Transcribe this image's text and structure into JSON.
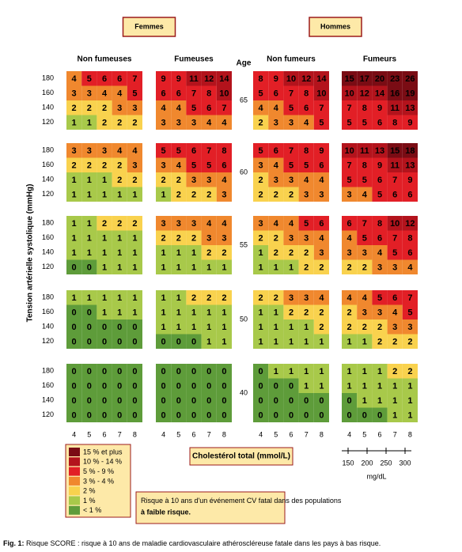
{
  "chart_data": {
    "type": "heatmap",
    "sexes": [
      {
        "label": "Femmes",
        "panels": [
          {
            "label": "Non fumeuses",
            "blocks": [
              [
                [
                  4,
                  5,
                  6,
                  6,
                  7
                ],
                [
                  3,
                  3,
                  4,
                  4,
                  5
                ],
                [
                  2,
                  2,
                  2,
                  3,
                  3
                ],
                [
                  1,
                  1,
                  2,
                  2,
                  2
                ]
              ],
              [
                [
                  3,
                  3,
                  3,
                  4,
                  4
                ],
                [
                  2,
                  2,
                  2,
                  2,
                  3
                ],
                [
                  1,
                  1,
                  1,
                  2,
                  2
                ],
                [
                  1,
                  1,
                  1,
                  1,
                  1
                ]
              ],
              [
                [
                  1,
                  1,
                  2,
                  2,
                  2
                ],
                [
                  1,
                  1,
                  1,
                  1,
                  1
                ],
                [
                  1,
                  1,
                  1,
                  1,
                  1
                ],
                [
                  0,
                  0,
                  1,
                  1,
                  1
                ]
              ],
              [
                [
                  1,
                  1,
                  1,
                  1,
                  1
                ],
                [
                  0,
                  0,
                  1,
                  1,
                  1
                ],
                [
                  0,
                  0,
                  0,
                  0,
                  0
                ],
                [
                  0,
                  0,
                  0,
                  0,
                  0
                ]
              ],
              [
                [
                  0,
                  0,
                  0,
                  0,
                  0
                ],
                [
                  0,
                  0,
                  0,
                  0,
                  0
                ],
                [
                  0,
                  0,
                  0,
                  0,
                  0
                ],
                [
                  0,
                  0,
                  0,
                  0,
                  0
                ]
              ]
            ]
          },
          {
            "label": "Fumeuses",
            "blocks": [
              [
                [
                  9,
                  9,
                  11,
                  12,
                  14
                ],
                [
                  6,
                  6,
                  7,
                  8,
                  10
                ],
                [
                  4,
                  4,
                  5,
                  6,
                  7
                ],
                [
                  3,
                  3,
                  3,
                  4,
                  4
                ]
              ],
              [
                [
                  5,
                  5,
                  6,
                  7,
                  8
                ],
                [
                  3,
                  4,
                  5,
                  5,
                  6
                ],
                [
                  2,
                  2,
                  3,
                  3,
                  4
                ],
                [
                  1,
                  2,
                  2,
                  2,
                  3
                ]
              ],
              [
                [
                  3,
                  3,
                  3,
                  4,
                  4
                ],
                [
                  2,
                  2,
                  2,
                  3,
                  3
                ],
                [
                  1,
                  1,
                  1,
                  2,
                  2
                ],
                [
                  1,
                  1,
                  1,
                  1,
                  1
                ]
              ],
              [
                [
                  1,
                  1,
                  2,
                  2,
                  2
                ],
                [
                  1,
                  1,
                  1,
                  1,
                  1
                ],
                [
                  1,
                  1,
                  1,
                  1,
                  1
                ],
                [
                  0,
                  0,
                  0,
                  1,
                  1
                ]
              ],
              [
                [
                  0,
                  0,
                  0,
                  0,
                  0
                ],
                [
                  0,
                  0,
                  0,
                  0,
                  0
                ],
                [
                  0,
                  0,
                  0,
                  0,
                  0
                ],
                [
                  0,
                  0,
                  0,
                  0,
                  0
                ]
              ]
            ]
          }
        ]
      },
      {
        "label": "Hommes",
        "panels": [
          {
            "label": "Non fumeurs",
            "blocks": [
              [
                [
                  8,
                  9,
                  10,
                  12,
                  14
                ],
                [
                  5,
                  6,
                  7,
                  8,
                  10
                ],
                [
                  4,
                  4,
                  5,
                  6,
                  7
                ],
                [
                  2,
                  3,
                  3,
                  4,
                  5
                ]
              ],
              [
                [
                  5,
                  6,
                  7,
                  8,
                  9
                ],
                [
                  3,
                  4,
                  5,
                  5,
                  6
                ],
                [
                  2,
                  3,
                  3,
                  4,
                  4
                ],
                [
                  2,
                  2,
                  2,
                  3,
                  3
                ]
              ],
              [
                [
                  3,
                  4,
                  4,
                  5,
                  6
                ],
                [
                  2,
                  2,
                  3,
                  3,
                  4
                ],
                [
                  1,
                  2,
                  2,
                  2,
                  3
                ],
                [
                  1,
                  1,
                  1,
                  2,
                  2
                ]
              ],
              [
                [
                  2,
                  2,
                  3,
                  3,
                  4
                ],
                [
                  1,
                  1,
                  2,
                  2,
                  2
                ],
                [
                  1,
                  1,
                  1,
                  1,
                  2
                ],
                [
                  1,
                  1,
                  1,
                  1,
                  1
                ]
              ],
              [
                [
                  0,
                  1,
                  1,
                  1,
                  1
                ],
                [
                  0,
                  0,
                  0,
                  1,
                  1
                ],
                [
                  0,
                  0,
                  0,
                  0,
                  0
                ],
                [
                  0,
                  0,
                  0,
                  0,
                  0
                ]
              ]
            ]
          },
          {
            "label": "Fumeurs",
            "blocks": [
              [
                [
                  15,
                  17,
                  20,
                  23,
                  26
                ],
                [
                  10,
                  12,
                  14,
                  16,
                  19
                ],
                [
                  7,
                  8,
                  9,
                  11,
                  13
                ],
                [
                  5,
                  5,
                  6,
                  8,
                  9
                ]
              ],
              [
                [
                  10,
                  11,
                  13,
                  15,
                  18
                ],
                [
                  7,
                  8,
                  9,
                  11,
                  13
                ],
                [
                  5,
                  5,
                  6,
                  7,
                  9
                ],
                [
                  3,
                  4,
                  5,
                  6,
                  6
                ]
              ],
              [
                [
                  6,
                  7,
                  8,
                  10,
                  12
                ],
                [
                  4,
                  5,
                  6,
                  7,
                  8
                ],
                [
                  3,
                  3,
                  4,
                  5,
                  6
                ],
                [
                  2,
                  2,
                  3,
                  3,
                  4
                ]
              ],
              [
                [
                  4,
                  4,
                  5,
                  6,
                  7
                ],
                [
                  2,
                  3,
                  3,
                  4,
                  5
                ],
                [
                  2,
                  2,
                  2,
                  3,
                  3
                ],
                [
                  1,
                  1,
                  2,
                  2,
                  2
                ]
              ],
              [
                [
                  1,
                  1,
                  1,
                  2,
                  2
                ],
                [
                  1,
                  1,
                  1,
                  1,
                  1
                ],
                [
                  0,
                  1,
                  1,
                  1,
                  1
                ],
                [
                  0,
                  0,
                  0,
                  1,
                  1
                ]
              ]
            ]
          }
        ]
      }
    ],
    "age_label": "Age",
    "ages": [
      65,
      60,
      55,
      50,
      40
    ],
    "sbp": [
      180,
      160,
      140,
      120
    ],
    "cholesterol": [
      4,
      5,
      6,
      7,
      8
    ],
    "y_label": "Tension artérielle systolique (mmHg)",
    "x_label": "Cholestérol total (mmol/L)",
    "mgdl_ticks": [
      150,
      200,
      250,
      300
    ],
    "mgdl_unit": "mg/dL",
    "legend": [
      {
        "label": "15 % et plus",
        "min": 15,
        "color": "#7a0c14"
      },
      {
        "label": "10 % - 14 %",
        "min": 10,
        "color": "#b3131c"
      },
      {
        "label": "5 % - 9 %",
        "min": 5,
        "color": "#e21f26"
      },
      {
        "label": "3 % - 4 %",
        "min": 3,
        "color": "#f0882e"
      },
      {
        "label": "2 %",
        "min": 2,
        "color": "#f9d24e"
      },
      {
        "label": "1 %",
        "min": 1,
        "color": "#a8c94a"
      },
      {
        "label": "< 1 %",
        "min": 0,
        "color": "#5e9c3a"
      }
    ],
    "note": {
      "text": "Risque à 10 ans d'un événement CV fatal dans des populations ",
      "bold": "à faible risque."
    },
    "caption": {
      "prefix": "Fig. 1:",
      "text": " Risque SCORE : risque à 10 ans de maladie cardiovasculaire athéroscléreuse fatale dans les pays à bas risque."
    }
  }
}
